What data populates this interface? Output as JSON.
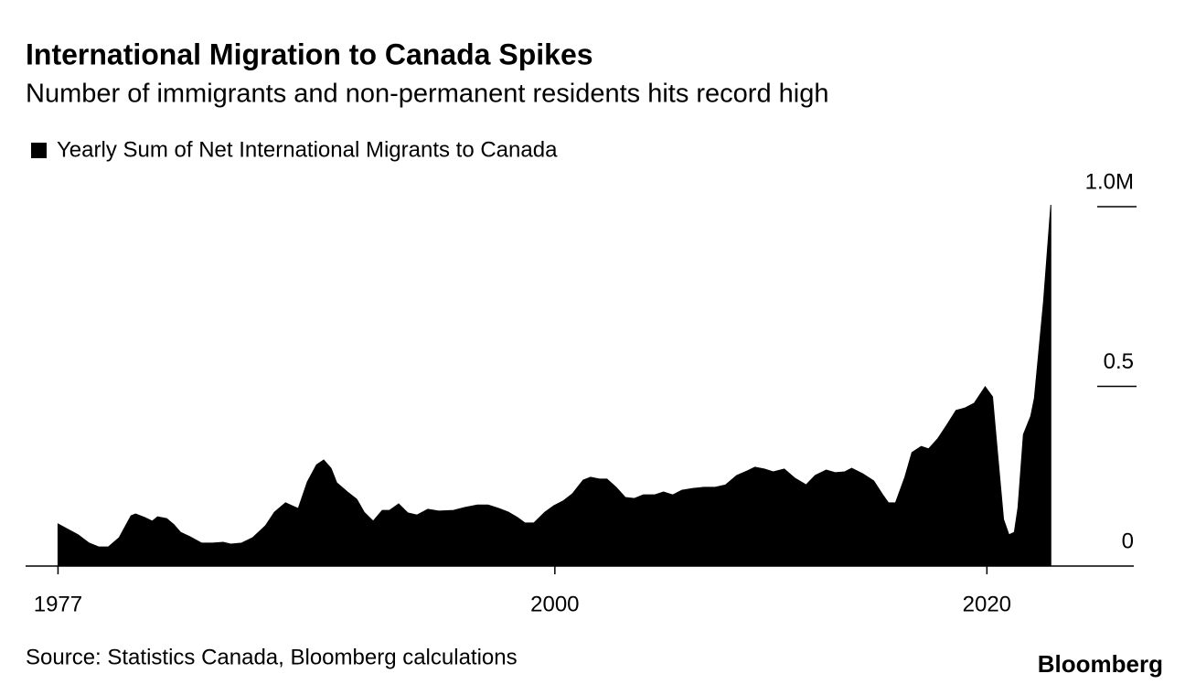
{
  "chart_data": {
    "type": "area",
    "title": "International Migration to Canada Spikes",
    "subtitle": "Number of immigrants and non-permanent residents hits record high",
    "source": "Source: Statistics Canada, Bloomberg calculations",
    "logo": "Bloomberg",
    "xlim": [
      1975.5,
      2026.8
    ],
    "xticks": [
      1977,
      2000,
      2020
    ],
    "ylim": [
      0,
      1000000
    ],
    "yticks": [
      0,
      {
        "value": 500000,
        "label": "0.5"
      },
      {
        "value": 1000000,
        "label": "1.0M"
      }
    ],
    "x": [
      1977.0,
      1977.93,
      1978.44,
      1978.9,
      1979.33,
      1979.83,
      1980.38,
      1980.59,
      1981.02,
      1981.36,
      1981.61,
      1982.03,
      1982.37,
      1982.67,
      1983.13,
      1983.64,
      1984.15,
      1984.65,
      1984.99,
      1985.5,
      1986.01,
      1986.6,
      1987.02,
      1987.53,
      1988.12,
      1988.54,
      1988.97,
      1989.3,
      1989.64,
      1989.9,
      1990.4,
      1990.83,
      1991.17,
      1991.59,
      1992.01,
      1992.35,
      1992.77,
      1993.19,
      1993.62,
      1994.12,
      1994.63,
      1995.31,
      1995.82,
      1996.41,
      1996.91,
      1997.42,
      1997.85,
      1998.27,
      1998.61,
      1999.03,
      1999.54,
      1999.96,
      2000.38,
      2000.81,
      2001.31,
      2001.65,
      2002.07,
      2002.41,
      2002.84,
      2003.26,
      2003.68,
      2004.1,
      2004.61,
      2005.03,
      2005.46,
      2005.88,
      2006.39,
      2006.89,
      2007.4,
      2007.91,
      2008.42,
      2008.92,
      2009.26,
      2009.69,
      2010.11,
      2010.62,
      2011.12,
      2011.63,
      2012.05,
      2012.56,
      2012.98,
      2013.41,
      2013.74,
      2014.25,
      2014.76,
      2015.18,
      2015.44,
      2015.77,
      2016.2,
      2016.53,
      2016.96,
      2017.3,
      2017.72,
      2018.14,
      2018.57,
      2018.99,
      2019.41,
      2019.92,
      2020.26,
      2020.51,
      2020.77,
      2021.02,
      2021.27,
      2021.44,
      2021.69,
      2022.03,
      2022.2,
      2022.62,
      2022.96
    ],
    "series": [
      {
        "name": "Yearly Sum of Net International Migrants to Canada",
        "color": "#000000",
        "values": [
          117000,
          87000,
          64000,
          53000,
          53000,
          79000,
          140000,
          145000,
          135000,
          125000,
          137000,
          132000,
          115000,
          94000,
          81000,
          64000,
          64000,
          66000,
          61000,
          64000,
          79000,
          112000,
          150000,
          176000,
          160000,
          234000,
          282000,
          295000,
          272000,
          232000,
          206000,
          186000,
          150000,
          125000,
          155000,
          155000,
          173000,
          148000,
          142000,
          158000,
          153000,
          155000,
          163000,
          170000,
          170000,
          160000,
          150000,
          135000,
          120000,
          120000,
          150000,
          168000,
          181000,
          201000,
          239000,
          247000,
          242000,
          242000,
          219000,
          191000,
          188000,
          198000,
          198000,
          206000,
          198000,
          211000,
          216000,
          219000,
          219000,
          226000,
          252000,
          265000,
          275000,
          270000,
          262000,
          270000,
          244000,
          226000,
          252000,
          267000,
          260000,
          262000,
          272000,
          257000,
          237000,
          198000,
          176000,
          176000,
          247000,
          316000,
          333000,
          326000,
          354000,
          392000,
          433000,
          440000,
          453000,
          499000,
          471000,
          303000,
          130000,
          87000,
          94000,
          163000,
          366000,
          417000,
          468000,
          735000,
          1005000
        ]
      }
    ]
  }
}
